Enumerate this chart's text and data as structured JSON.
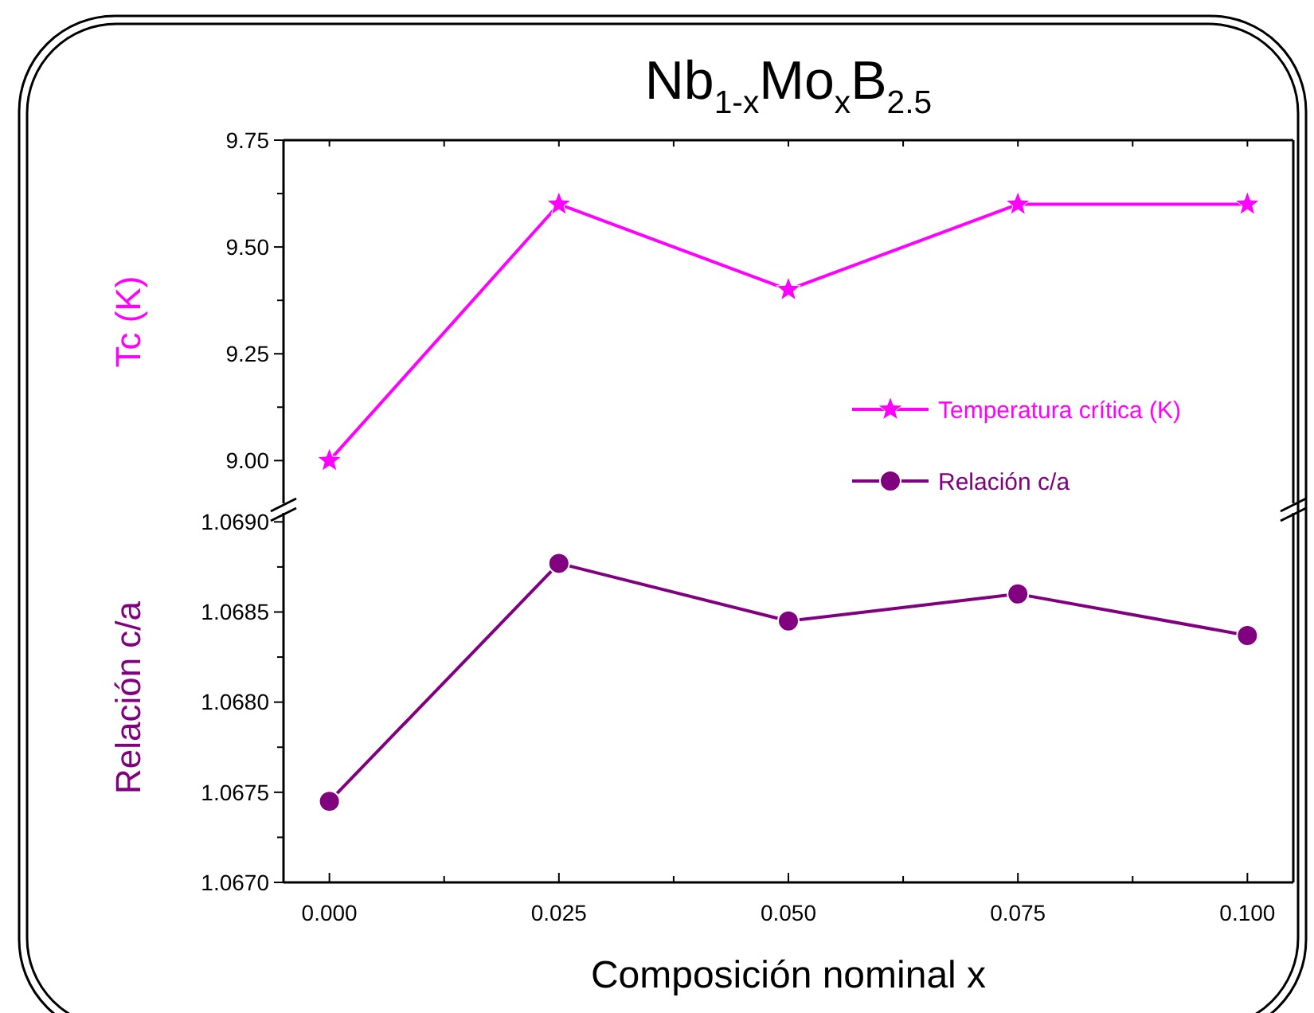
{
  "chart_data": [
    {
      "type": "line",
      "title": "Nb$_{1-x}$Mo$_{x}$B$_{2.5}$",
      "ylabel": "Tc (K)",
      "x": [
        0,
        0.025,
        0.05,
        0.075,
        0.1
      ],
      "series": [
        {
          "name": "Temperatura crítica (K)",
          "color": "#ff00ff",
          "values": [
            9.0,
            9.6,
            9.4,
            9.6,
            9.6
          ],
          "marker": "star"
        }
      ],
      "xlim": [
        -0.005,
        0.105
      ],
      "xticks": [
        {
          "value": 0,
          "label": null
        },
        {
          "value": 0.0125,
          "label": null
        },
        {
          "value": 0.025,
          "label": null
        },
        {
          "value": 0.0375,
          "label": null
        },
        {
          "value": 0.05,
          "label": null
        },
        {
          "value": 0.0625,
          "label": null
        },
        {
          "value": 0.075,
          "label": null
        },
        {
          "value": 0.0875,
          "label": null
        },
        {
          "value": 0.1,
          "label": null
        }
      ],
      "ylim": [
        8.9,
        9.75
      ],
      "yticks": [
        {
          "value": 9.0,
          "label": "9.00"
        },
        {
          "value": 9.125,
          "label": null
        },
        {
          "value": 9.25,
          "label": "9.25"
        },
        {
          "value": 9.375,
          "label": null
        },
        {
          "value": 9.5,
          "label": "9.50"
        },
        {
          "value": 9.625,
          "label": null
        },
        {
          "value": 9.75,
          "label": "9.75"
        }
      ],
      "tick_labels": "y",
      "grid": false,
      "legend": "right",
      "line_style": "solid"
    },
    {
      "type": "line",
      "xlabel": "Composición nominal x",
      "ylabel": "Relación c/a",
      "x": [
        0,
        0.025,
        0.05,
        0.075,
        0.1
      ],
      "series": [
        {
          "name": "Relación c/a",
          "color": "#800080",
          "values": [
            1.06745,
            1.06877,
            1.06845,
            1.0686,
            1.06837
          ],
          "marker": "circle"
        }
      ],
      "xlim": [
        -0.005,
        0.105
      ],
      "xticks": [
        {
          "value": 0,
          "label": "0.000"
        },
        {
          "value": 0.0125,
          "label": null
        },
        {
          "value": 0.025,
          "label": "0.025"
        },
        {
          "value": 0.0375,
          "label": null
        },
        {
          "value": 0.05,
          "label": "0.050"
        },
        {
          "value": 0.0625,
          "label": null
        },
        {
          "value": 0.075,
          "label": "0.075"
        },
        {
          "value": 0.0875,
          "label": null
        },
        {
          "value": 0.1,
          "label": "0.100"
        }
      ],
      "ylim": [
        1.067,
        1.06905
      ],
      "yticks": [
        {
          "value": 1.067,
          "label": "1.0670"
        },
        {
          "value": 1.0675,
          "label": "1.0675"
        },
        {
          "value": 1.068,
          "label": "1.0680"
        },
        {
          "value": 1.0685,
          "label": "1.0685"
        },
        {
          "value": 1.069,
          "label": "1.0690"
        },
        {
          "value": 1.06725,
          "label": null
        },
        {
          "value": 1.06775,
          "label": null
        },
        {
          "value": 1.06825,
          "label": null
        },
        {
          "value": 1.06875,
          "label": null
        }
      ],
      "grid": false,
      "legend": "top right",
      "line_style": "solid"
    }
  ]
}
